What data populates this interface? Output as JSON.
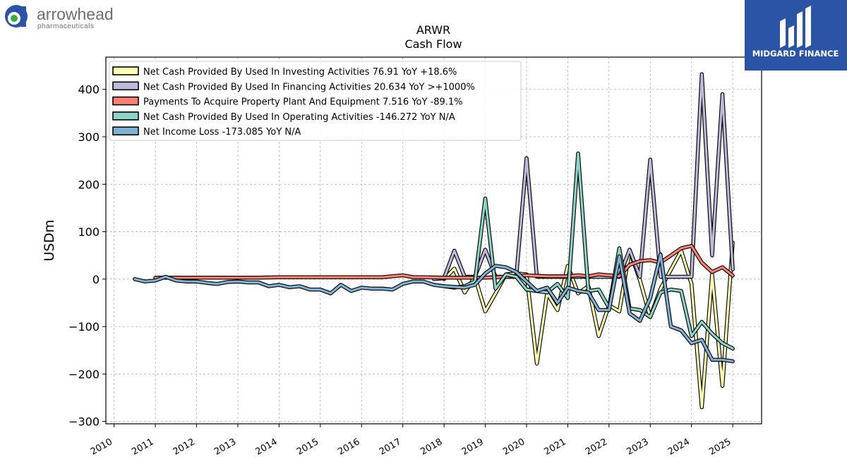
{
  "brand_left": {
    "name": "arrowhead",
    "sub": "pharmaceuticals"
  },
  "brand_right": {
    "name": "MIDGARD FINANCE"
  },
  "colors": {
    "investing": "#ffffb3",
    "financing": "#bebada",
    "capex": "#fb8072",
    "operating": "#8dd3c7",
    "netincome": "#80b1d3",
    "brand_blue": "#2b54a6"
  },
  "chart_data": {
    "type": "line",
    "title": "ARWR",
    "subtitle": "Cash Flow",
    "ylabel": "USDm",
    "xlabel": "",
    "xlim": [
      2009.8,
      2025.7
    ],
    "ylim": [
      -305,
      468
    ],
    "yticks": [
      -300,
      -200,
      -100,
      0,
      100,
      200,
      300,
      400
    ],
    "ytick_labels": [
      "−300",
      "−200",
      "−100",
      "0",
      "100",
      "200",
      "300",
      "400"
    ],
    "xticks": [
      2010,
      2011,
      2012,
      2013,
      2014,
      2015,
      2016,
      2017,
      2018,
      2019,
      2020,
      2021,
      2022,
      2023,
      2024,
      2025
    ],
    "grid": true,
    "legend_position": "upper-left",
    "series": [
      {
        "key": "investing",
        "name": "Net Cash Provided By Used In Investing Activities  76.91 YoY +18.6%",
        "points": [
          [
            2018.0,
            0
          ],
          [
            2018.25,
            22
          ],
          [
            2018.5,
            -28
          ],
          [
            2018.75,
            5
          ],
          [
            2019.0,
            -68
          ],
          [
            2019.25,
            -30
          ],
          [
            2019.5,
            10
          ],
          [
            2019.75,
            12
          ],
          [
            2020.0,
            10
          ],
          [
            2020.25,
            -178
          ],
          [
            2020.5,
            -30
          ],
          [
            2020.75,
            -65
          ],
          [
            2021.0,
            28
          ],
          [
            2021.25,
            -30
          ],
          [
            2021.5,
            -15
          ],
          [
            2021.75,
            -120
          ],
          [
            2022.0,
            -55
          ],
          [
            2022.25,
            -68
          ],
          [
            2022.5,
            60
          ],
          [
            2022.75,
            -2
          ],
          [
            2023.0,
            -80
          ],
          [
            2023.25,
            -20
          ],
          [
            2023.5,
            20
          ],
          [
            2023.75,
            60
          ],
          [
            2024.0,
            -10
          ],
          [
            2024.25,
            -270
          ],
          [
            2024.5,
            10
          ],
          [
            2024.75,
            -225
          ],
          [
            2025.0,
            76.91
          ]
        ]
      },
      {
        "key": "financing",
        "name": "Net Cash Provided By Used In Financing Activities  20.634 YoY >+1000%",
        "points": [
          [
            2017.75,
            0
          ],
          [
            2018.0,
            2
          ],
          [
            2018.25,
            60
          ],
          [
            2018.5,
            5
          ],
          [
            2018.75,
            5
          ],
          [
            2019.0,
            62
          ],
          [
            2019.25,
            5
          ],
          [
            2019.5,
            5
          ],
          [
            2019.75,
            5
          ],
          [
            2020.0,
            255
          ],
          [
            2020.25,
            5
          ],
          [
            2020.5,
            5
          ],
          [
            2020.75,
            5
          ],
          [
            2021.0,
            5
          ],
          [
            2021.25,
            5
          ],
          [
            2021.5,
            5
          ],
          [
            2021.75,
            5
          ],
          [
            2022.0,
            5
          ],
          [
            2022.25,
            5
          ],
          [
            2022.5,
            62
          ],
          [
            2022.75,
            5
          ],
          [
            2023.0,
            252
          ],
          [
            2023.25,
            5
          ],
          [
            2023.5,
            5
          ],
          [
            2023.75,
            5
          ],
          [
            2024.0,
            5
          ],
          [
            2024.25,
            432
          ],
          [
            2024.5,
            50
          ],
          [
            2024.75,
            390
          ],
          [
            2025.0,
            20.634
          ]
        ]
      },
      {
        "key": "capex",
        "name": "Payments To Acquire Property Plant And Equipment  7.516 YoY -89.1%",
        "points": [
          [
            2011.0,
            3
          ],
          [
            2011.5,
            3
          ],
          [
            2012.0,
            3
          ],
          [
            2012.5,
            3
          ],
          [
            2013.0,
            3
          ],
          [
            2013.5,
            3
          ],
          [
            2014.0,
            4
          ],
          [
            2014.5,
            4
          ],
          [
            2015.0,
            4
          ],
          [
            2015.5,
            4
          ],
          [
            2016.0,
            4
          ],
          [
            2016.5,
            4
          ],
          [
            2017.0,
            8
          ],
          [
            2017.25,
            4
          ],
          [
            2017.5,
            4
          ],
          [
            2018.0,
            3
          ],
          [
            2018.5,
            3
          ],
          [
            2019.0,
            3
          ],
          [
            2019.5,
            5
          ],
          [
            2020.0,
            8
          ],
          [
            2020.5,
            6
          ],
          [
            2021.0,
            6
          ],
          [
            2021.25,
            8
          ],
          [
            2021.5,
            6
          ],
          [
            2021.75,
            10
          ],
          [
            2022.0,
            8
          ],
          [
            2022.25,
            6
          ],
          [
            2022.5,
            30
          ],
          [
            2022.75,
            38
          ],
          [
            2023.0,
            40
          ],
          [
            2023.25,
            35
          ],
          [
            2023.5,
            50
          ],
          [
            2023.75,
            65
          ],
          [
            2024.0,
            70
          ],
          [
            2024.25,
            35
          ],
          [
            2024.5,
            15
          ],
          [
            2024.75,
            25
          ],
          [
            2025.0,
            7.516
          ]
        ]
      },
      {
        "key": "operating",
        "name": "Net Cash Provided By Used In Operating Activities  -146.272 YoY N/A",
        "points": [
          [
            2018.0,
            -15
          ],
          [
            2018.25,
            -18
          ],
          [
            2018.5,
            -15
          ],
          [
            2018.75,
            -5
          ],
          [
            2019.0,
            170
          ],
          [
            2019.25,
            -20
          ],
          [
            2019.5,
            10
          ],
          [
            2019.75,
            5
          ],
          [
            2020.0,
            -22
          ],
          [
            2020.25,
            -25
          ],
          [
            2020.5,
            -28
          ],
          [
            2020.75,
            -10
          ],
          [
            2021.0,
            -40
          ],
          [
            2021.25,
            265
          ],
          [
            2021.5,
            -25
          ],
          [
            2021.75,
            -22
          ],
          [
            2022.0,
            -60
          ],
          [
            2022.25,
            65
          ],
          [
            2022.5,
            -62
          ],
          [
            2022.75,
            -65
          ],
          [
            2023.0,
            -80
          ],
          [
            2023.25,
            -28
          ],
          [
            2023.5,
            -22
          ],
          [
            2023.75,
            -25
          ],
          [
            2024.0,
            -120
          ],
          [
            2024.25,
            -90
          ],
          [
            2024.5,
            -115
          ],
          [
            2024.75,
            -135
          ],
          [
            2025.0,
            -146.272
          ]
        ]
      },
      {
        "key": "netincome",
        "name": "Net Income Loss  -173.085 YoY N/A",
        "points": [
          [
            2010.5,
            0
          ],
          [
            2010.75,
            -5
          ],
          [
            2011.0,
            -3
          ],
          [
            2011.25,
            5
          ],
          [
            2011.5,
            -3
          ],
          [
            2011.75,
            -5
          ],
          [
            2012.0,
            -5
          ],
          [
            2012.25,
            -8
          ],
          [
            2012.5,
            -10
          ],
          [
            2012.75,
            -6
          ],
          [
            2013.0,
            -5
          ],
          [
            2013.25,
            -7
          ],
          [
            2013.5,
            -7
          ],
          [
            2013.75,
            -15
          ],
          [
            2014.0,
            -12
          ],
          [
            2014.25,
            -17
          ],
          [
            2014.5,
            -15
          ],
          [
            2014.75,
            -22
          ],
          [
            2015.0,
            -22
          ],
          [
            2015.25,
            -30
          ],
          [
            2015.5,
            -12
          ],
          [
            2015.75,
            -25
          ],
          [
            2016.0,
            -18
          ],
          [
            2016.25,
            -20
          ],
          [
            2016.5,
            -20
          ],
          [
            2016.75,
            -22
          ],
          [
            2017.0,
            -10
          ],
          [
            2017.25,
            -5
          ],
          [
            2017.5,
            -5
          ],
          [
            2017.75,
            -12
          ],
          [
            2018.0,
            -15
          ],
          [
            2018.5,
            -18
          ],
          [
            2018.75,
            -12
          ],
          [
            2019.0,
            12
          ],
          [
            2019.25,
            28
          ],
          [
            2019.5,
            25
          ],
          [
            2019.75,
            15
          ],
          [
            2020.0,
            -5
          ],
          [
            2020.25,
            -25
          ],
          [
            2020.5,
            -18
          ],
          [
            2020.75,
            -50
          ],
          [
            2021.0,
            -18
          ],
          [
            2021.25,
            -25
          ],
          [
            2021.5,
            -28
          ],
          [
            2021.75,
            -65
          ],
          [
            2022.0,
            -65
          ],
          [
            2022.25,
            48
          ],
          [
            2022.5,
            -72
          ],
          [
            2022.75,
            -88
          ],
          [
            2023.0,
            -40
          ],
          [
            2023.25,
            52
          ],
          [
            2023.5,
            -100
          ],
          [
            2023.75,
            -108
          ],
          [
            2024.0,
            -135
          ],
          [
            2024.25,
            -128
          ],
          [
            2024.5,
            -170
          ],
          [
            2024.75,
            -170
          ],
          [
            2025.0,
            -173.085
          ]
        ]
      }
    ]
  }
}
